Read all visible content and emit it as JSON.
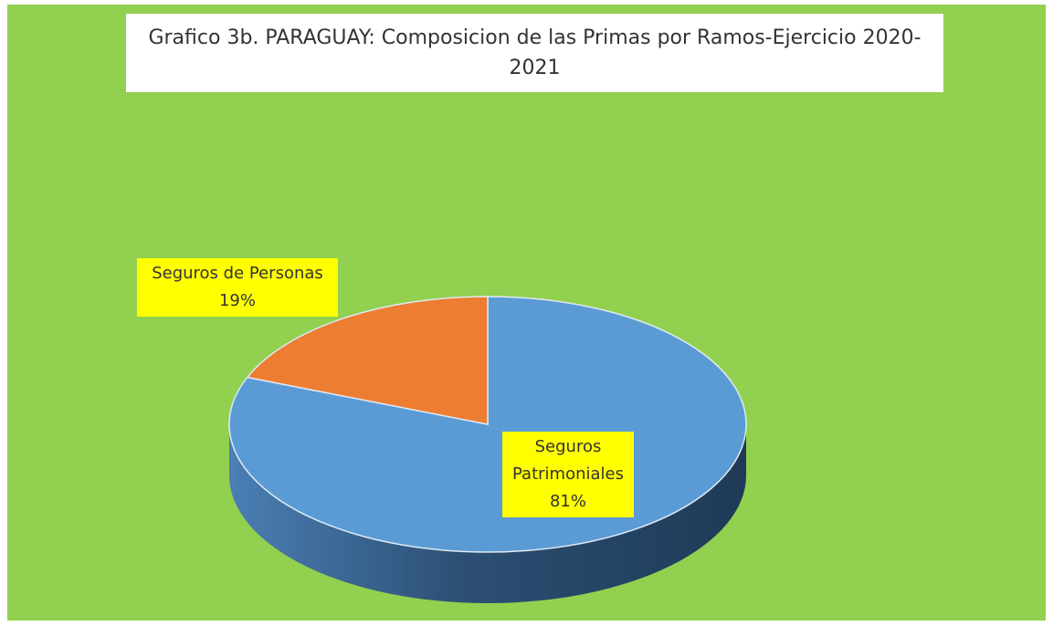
{
  "chart_data": {
    "type": "pie",
    "title": "Grafico 3b. PARAGUAY: Composicion de las Primas por Ramos-Ejercicio 2020-2021",
    "categories": [
      "Seguros Patrimoniales",
      "Seguros de Personas"
    ],
    "values": [
      81,
      19
    ],
    "value_labels": [
      "81%",
      "19%"
    ],
    "colors": [
      "#5b9bd5",
      "#ed7d31"
    ]
  }
}
